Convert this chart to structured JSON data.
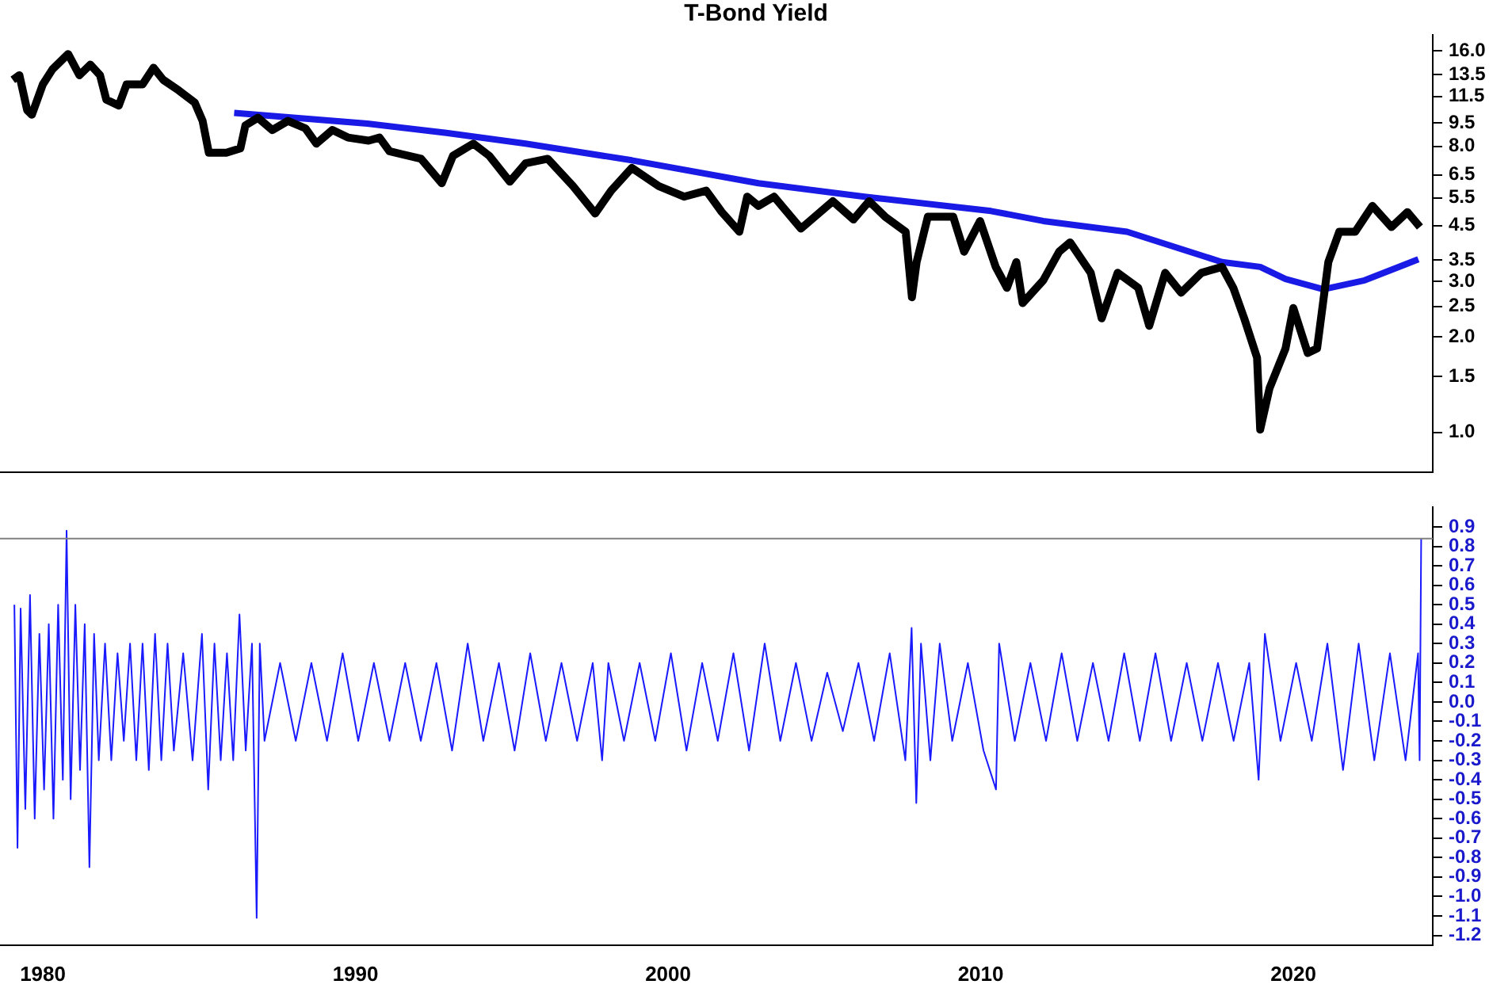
{
  "chart_data": [
    {
      "type": "line",
      "title": "T-Bond Yield",
      "log": "y",
      "marker": "none",
      "tick_labels": "y",
      "xlim": [
        1978.63,
        2024.46
      ],
      "xticks": [
        1980,
        1990,
        2000,
        2010,
        2020
      ],
      "ylim": [
        0.75,
        18
      ],
      "yticks": [
        {
          "value": 16,
          "label": "16.0"
        },
        {
          "value": 13.5,
          "label": "13.5"
        },
        {
          "value": 11.5,
          "label": "11.5"
        },
        {
          "value": 9.5,
          "label": "9.5"
        },
        {
          "value": 8,
          "label": "8.0"
        },
        {
          "value": 6.5,
          "label": "6.5"
        },
        {
          "value": 5.5,
          "label": "5.5"
        },
        {
          "value": 4.5,
          "label": "4.5"
        },
        {
          "value": 3.5,
          "label": "3.5"
        },
        {
          "value": 3,
          "label": "3.0"
        },
        {
          "value": 2.5,
          "label": "2.5"
        },
        {
          "value": 2,
          "label": "2.0"
        },
        {
          "value": 1.5,
          "label": "1.5"
        },
        {
          "value": 1,
          "label": "1.0"
        }
      ],
      "series": [
        {
          "color": "#000000",
          "x": [
            1979.04,
            1979.25,
            1979.5,
            1979.65,
            1980.0,
            1980.31,
            1980.81,
            1981.17,
            1981.52,
            1981.83,
            1982.03,
            1982.43,
            1982.68,
            1983.19,
            1983.54,
            1983.85,
            1984.35,
            1984.86,
            1985.11,
            1985.31,
            1985.87,
            1986.32,
            1986.48,
            1986.88,
            1987.34,
            1987.84,
            1988.4,
            1988.75,
            1989.26,
            1989.76,
            1990.42,
            1990.77,
            1991.09,
            1992.1,
            1992.76,
            1993.12,
            1993.77,
            1994.28,
            1994.94,
            1995.44,
            1996.15,
            1996.96,
            1997.67,
            1998.18,
            1998.84,
            1999.7,
            2000.51,
            2001.22,
            2001.72,
            2002.28,
            2002.53,
            2002.89,
            2003.39,
            2004.25,
            2005.27,
            2005.93,
            2006.43,
            2006.94,
            2007.6,
            2007.8,
            2007.95,
            2008.31,
            2009.12,
            2009.47,
            2009.98,
            2010.48,
            2010.84,
            2011.14,
            2011.34,
            2012.0,
            2012.51,
            2012.86,
            2013.52,
            2013.87,
            2014.38,
            2015.04,
            2015.39,
            2015.9,
            2016.41,
            2017.06,
            2017.72,
            2018.08,
            2018.43,
            2018.84,
            2018.94,
            2019.24,
            2019.75,
            2020.0,
            2020.46,
            2020.76,
            2021.12,
            2021.47,
            2021.98,
            2022.53,
            2023.14,
            2023.65,
            2024.05
          ],
          "values": [
            12.98,
            13.42,
            10.41,
            10.07,
            12.56,
            14.02,
            15.66,
            13.42,
            14.5,
            13.42,
            11.24,
            10.76,
            12.56,
            12.56,
            14.18,
            12.98,
            12.01,
            11.0,
            9.63,
            7.64,
            7.64,
            7.89,
            9.32,
            9.85,
            9.01,
            9.63,
            9.12,
            8.16,
            9.01,
            8.53,
            8.34,
            8.53,
            7.72,
            7.31,
            6.12,
            7.47,
            8.16,
            7.47,
            6.19,
            7.07,
            7.31,
            5.99,
            4.91,
            5.8,
            6.84,
            5.99,
            5.55,
            5.8,
            4.96,
            4.3,
            5.55,
            5.19,
            5.55,
            4.4,
            5.37,
            4.7,
            5.37,
            4.8,
            4.3,
            2.67,
            3.45,
            4.8,
            4.8,
            3.72,
            4.65,
            3.33,
            2.86,
            3.45,
            2.56,
            3.02,
            3.72,
            3.98,
            3.19,
            2.29,
            3.19,
            2.86,
            2.17,
            3.19,
            2.76,
            3.19,
            3.33,
            2.86,
            2.29,
            1.72,
            1.02,
            1.38,
            1.84,
            2.47,
            1.78,
            1.84,
            3.45,
            4.3,
            4.3,
            5.19,
            4.45,
            4.96,
            4.45
          ]
        },
        {
          "color": "#1a1ae6",
          "x": [
            1986.12,
            1990.38,
            1992.91,
            1995.44,
            1998.84,
            2002.89,
            2006.28,
            2010.33,
            2012.0,
            2014.68,
            2017.72,
            2018.94,
            2019.75,
            2020.96,
            2022.28,
            2024.0
          ],
          "values": [
            10.2,
            9.44,
            8.82,
            8.16,
            7.23,
            6.12,
            5.55,
            5.0,
            4.65,
            4.3,
            3.45,
            3.33,
            3.05,
            2.83,
            3.02,
            3.52
          ]
        }
      ]
    },
    {
      "type": "line",
      "marker": "none",
      "xlim": [
        1978.63,
        2024.46
      ],
      "xticks": [
        1980,
        1990,
        2000,
        2010,
        2020
      ],
      "ylim": [
        -1.25,
        1.0
      ],
      "yticks": [
        0.9,
        0.8,
        0.7,
        0.6,
        0.5,
        0.4,
        0.3,
        0.2,
        0.1,
        {
          "value": 0,
          "label": "0.0"
        },
        -0.1,
        -0.2,
        -0.3,
        -0.4,
        -0.5,
        -0.6,
        -0.7,
        -0.8,
        -0.9,
        {
          "value": -1,
          "label": "-1.0"
        },
        -1.1,
        -1.2
      ],
      "ref_lines": [
        {
          "axis": "y",
          "value": 0.84,
          "color": "#808080"
        }
      ],
      "series": [
        {
          "color": "#1a1aff",
          "x": [
            1979.09,
            1979.19,
            1979.29,
            1979.44,
            1979.59,
            1979.74,
            1979.89,
            1980.04,
            1980.19,
            1980.34,
            1980.49,
            1980.64,
            1980.76,
            1980.89,
            1981.04,
            1981.19,
            1981.34,
            1981.49,
            1981.64,
            1981.79,
            1981.99,
            1982.19,
            1982.39,
            1982.59,
            1982.79,
            1982.99,
            1983.19,
            1983.39,
            1983.59,
            1983.79,
            1983.99,
            1984.19,
            1984.49,
            1984.79,
            1985.09,
            1985.29,
            1985.49,
            1985.69,
            1985.89,
            1986.09,
            1986.29,
            1986.49,
            1986.69,
            1986.84,
            1986.94,
            1987.09,
            1987.59,
            1988.09,
            1988.59,
            1989.09,
            1989.59,
            1990.09,
            1990.59,
            1991.09,
            1991.59,
            1992.09,
            1992.59,
            1993.09,
            1993.59,
            1994.09,
            1994.59,
            1995.09,
            1995.59,
            1996.09,
            1996.59,
            1997.09,
            1997.59,
            1997.89,
            1998.09,
            1998.59,
            1999.09,
            1999.59,
            2000.09,
            2000.59,
            2001.09,
            2001.59,
            2002.09,
            2002.59,
            2003.09,
            2003.59,
            2004.09,
            2004.59,
            2005.09,
            2005.59,
            2006.09,
            2006.59,
            2007.09,
            2007.59,
            2007.79,
            2007.94,
            2008.09,
            2008.39,
            2008.69,
            2009.09,
            2009.59,
            2010.09,
            2010.49,
            2010.59,
            2011.09,
            2011.59,
            2012.09,
            2012.59,
            2013.09,
            2013.59,
            2014.09,
            2014.59,
            2015.09,
            2015.59,
            2016.09,
            2016.59,
            2017.09,
            2017.59,
            2018.09,
            2018.59,
            2018.89,
            2019.09,
            2019.59,
            2020.09,
            2020.59,
            2021.09,
            2021.59,
            2022.09,
            2022.59,
            2023.09,
            2023.59,
            2023.99,
            2024.04,
            2024.09
          ],
          "values": [
            0.5,
            -0.75,
            0.48,
            -0.55,
            0.55,
            -0.6,
            0.35,
            -0.45,
            0.4,
            -0.6,
            0.5,
            -0.4,
            0.88,
            -0.5,
            0.5,
            -0.35,
            0.4,
            -0.85,
            0.35,
            -0.3,
            0.3,
            -0.3,
            0.25,
            -0.2,
            0.3,
            -0.3,
            0.3,
            -0.35,
            0.35,
            -0.3,
            0.3,
            -0.25,
            0.25,
            -0.3,
            0.35,
            -0.45,
            0.3,
            -0.3,
            0.25,
            -0.3,
            0.45,
            -0.25,
            0.3,
            -1.11,
            0.3,
            -0.2,
            0.2,
            -0.2,
            0.2,
            -0.2,
            0.25,
            -0.2,
            0.2,
            -0.2,
            0.2,
            -0.2,
            0.2,
            -0.25,
            0.3,
            -0.2,
            0.2,
            -0.25,
            0.25,
            -0.2,
            0.2,
            -0.2,
            0.2,
            -0.3,
            0.2,
            -0.2,
            0.2,
            -0.2,
            0.25,
            -0.25,
            0.2,
            -0.2,
            0.25,
            -0.25,
            0.3,
            -0.2,
            0.2,
            -0.2,
            0.15,
            -0.15,
            0.2,
            -0.2,
            0.25,
            -0.3,
            0.38,
            -0.52,
            0.3,
            -0.3,
            0.3,
            -0.2,
            0.2,
            -0.25,
            -0.45,
            0.3,
            -0.2,
            0.2,
            -0.2,
            0.25,
            -0.2,
            0.2,
            -0.2,
            0.25,
            -0.2,
            0.25,
            -0.2,
            0.2,
            -0.2,
            0.2,
            -0.2,
            0.2,
            -0.4,
            0.35,
            -0.2,
            0.2,
            -0.2,
            0.3,
            -0.35,
            0.3,
            -0.3,
            0.25,
            -0.3,
            0.25,
            -0.3,
            0.84
          ]
        }
      ]
    }
  ]
}
